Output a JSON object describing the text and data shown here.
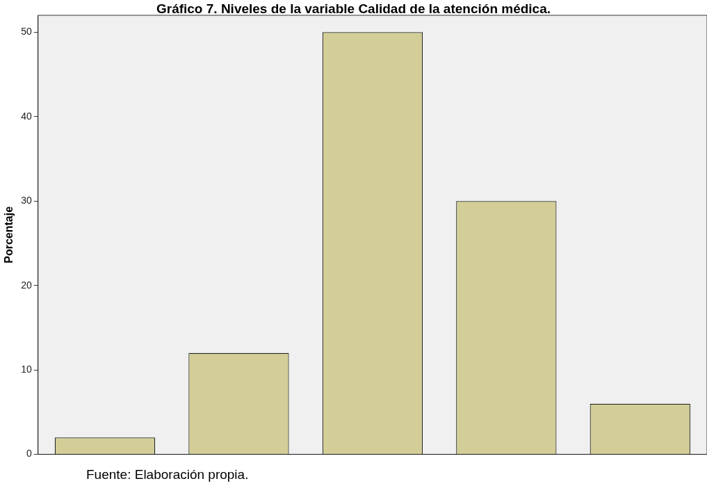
{
  "chart_data": {
    "type": "bar",
    "title": "Gráfico 7. Niveles de la variable Calidad de la atención médica.",
    "ylabel": "Porcentaje",
    "categories": [
      null,
      null,
      null,
      null,
      null
    ],
    "values": [
      2,
      12,
      50,
      30,
      6
    ],
    "color": "#d3ce97",
    "ylim": [
      0,
      52
    ],
    "yticks": [
      0,
      10,
      20,
      30,
      40,
      50
    ],
    "grid": false,
    "legend": false,
    "annotations": [
      "Fuente: Elaboración propia."
    ]
  }
}
